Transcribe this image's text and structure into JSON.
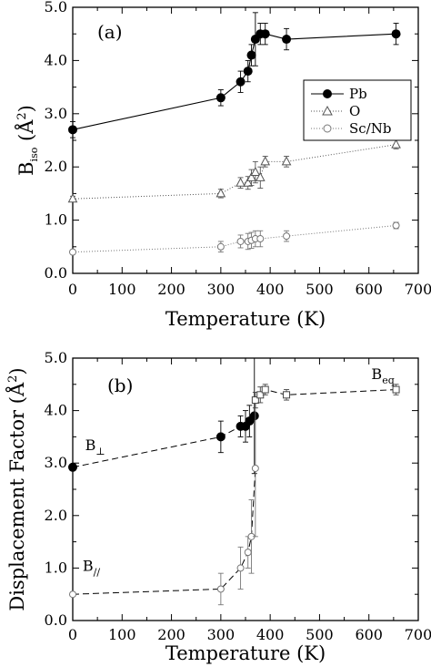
{
  "chart_data": [
    {
      "type": "line",
      "panel_label": "(a)",
      "xlabel": "Temperature  (K)",
      "ylabel": "B_iso (Å²)",
      "ylabel_main": "B",
      "ylabel_sub": "iso",
      "ylabel_unit": " (Å",
      "ylabel_sup": "2",
      "ylabel_close": ")",
      "xlim": [
        0,
        700
      ],
      "ylim": [
        0,
        5
      ],
      "x_ticks": [
        "0",
        "100",
        "200",
        "300",
        "400",
        "500",
        "600",
        "700"
      ],
      "y_ticks": [
        "0.0",
        "1.0",
        "2.0",
        "3.0",
        "4.0",
        "5.0"
      ],
      "legend_position": "right",
      "series": [
        {
          "name": "Pb",
          "marker": "filled-circle",
          "line": "solid",
          "x": [
            0,
            300,
            340,
            355,
            362,
            370,
            380,
            390,
            433,
            655
          ],
          "y": [
            2.7,
            3.3,
            3.6,
            3.8,
            4.1,
            4.4,
            4.5,
            4.5,
            4.4,
            4.5
          ],
          "err": [
            0.15,
            0.15,
            0.2,
            0.2,
            0.2,
            0.5,
            0.2,
            0.2,
            0.2,
            0.2
          ]
        },
        {
          "name": "O",
          "marker": "open-triangle",
          "line": "dotted",
          "x": [
            0,
            300,
            340,
            355,
            362,
            370,
            380,
            390,
            433,
            655
          ],
          "y": [
            1.4,
            1.5,
            1.7,
            1.7,
            1.8,
            1.9,
            1.8,
            2.1,
            2.1,
            2.42
          ],
          "err": [
            0.05,
            0.08,
            0.1,
            0.12,
            0.15,
            0.2,
            0.2,
            0.1,
            0.1,
            0.08
          ]
        },
        {
          "name": "Sc/Nb",
          "marker": "open-circle",
          "line": "dotted",
          "x": [
            0,
            300,
            340,
            355,
            362,
            370,
            380,
            433,
            655
          ],
          "y": [
            0.4,
            0.5,
            0.6,
            0.6,
            0.62,
            0.65,
            0.65,
            0.7,
            0.9
          ],
          "err": [
            0.03,
            0.1,
            0.12,
            0.15,
            0.15,
            0.15,
            0.15,
            0.1,
            0.06
          ]
        }
      ]
    },
    {
      "type": "line",
      "panel_label": "(b)",
      "xlabel": "Temperature  (K)",
      "ylabel": "Displacement Factor  (Å²)",
      "ylabel_main": "Displacement Factor  (Å",
      "ylabel_sup": "2",
      "ylabel_close": ")",
      "xlim": [
        0,
        700
      ],
      "ylim": [
        0,
        5
      ],
      "x_ticks": [
        "0",
        "100",
        "200",
        "300",
        "400",
        "500",
        "600",
        "700"
      ],
      "y_ticks": [
        "0.0",
        "1.0",
        "2.0",
        "3.0",
        "4.0",
        "5.0"
      ],
      "annotations": [
        {
          "main": "B",
          "sub": "eq",
          "x": 605,
          "y": 4.6
        },
        {
          "main": "B",
          "sub": "⊥",
          "x": 25,
          "y": 3.25
        },
        {
          "main": "B",
          "sub": "//",
          "x": 20,
          "y": 0.95
        }
      ],
      "series": [
        {
          "name": "B⊥",
          "marker": "filled-circle",
          "line": "dashed",
          "x": [
            0,
            300,
            340,
            350,
            358,
            368
          ],
          "y": [
            2.92,
            3.5,
            3.7,
            3.7,
            3.8,
            3.9
          ],
          "err": [
            0,
            0.3,
            0.2,
            0.3,
            0.3,
            1.1
          ]
        },
        {
          "name": "B//",
          "marker": "open-circle",
          "line": "dashed",
          "x": [
            0,
            300,
            340,
            355,
            362,
            370
          ],
          "y": [
            0.5,
            0.6,
            1.0,
            1.3,
            1.6,
            2.9
          ],
          "err": [
            0,
            0.3,
            0.4,
            0.3,
            0.7,
            1.3
          ]
        },
        {
          "name": "Beq",
          "marker": "open-square",
          "line": "dashed",
          "x": [
            370,
            380,
            390,
            433,
            655
          ],
          "y": [
            4.2,
            4.3,
            4.4,
            4.3,
            4.4
          ],
          "err": [
            0.15,
            0.15,
            0.1,
            0.1,
            0.1
          ]
        }
      ]
    }
  ]
}
